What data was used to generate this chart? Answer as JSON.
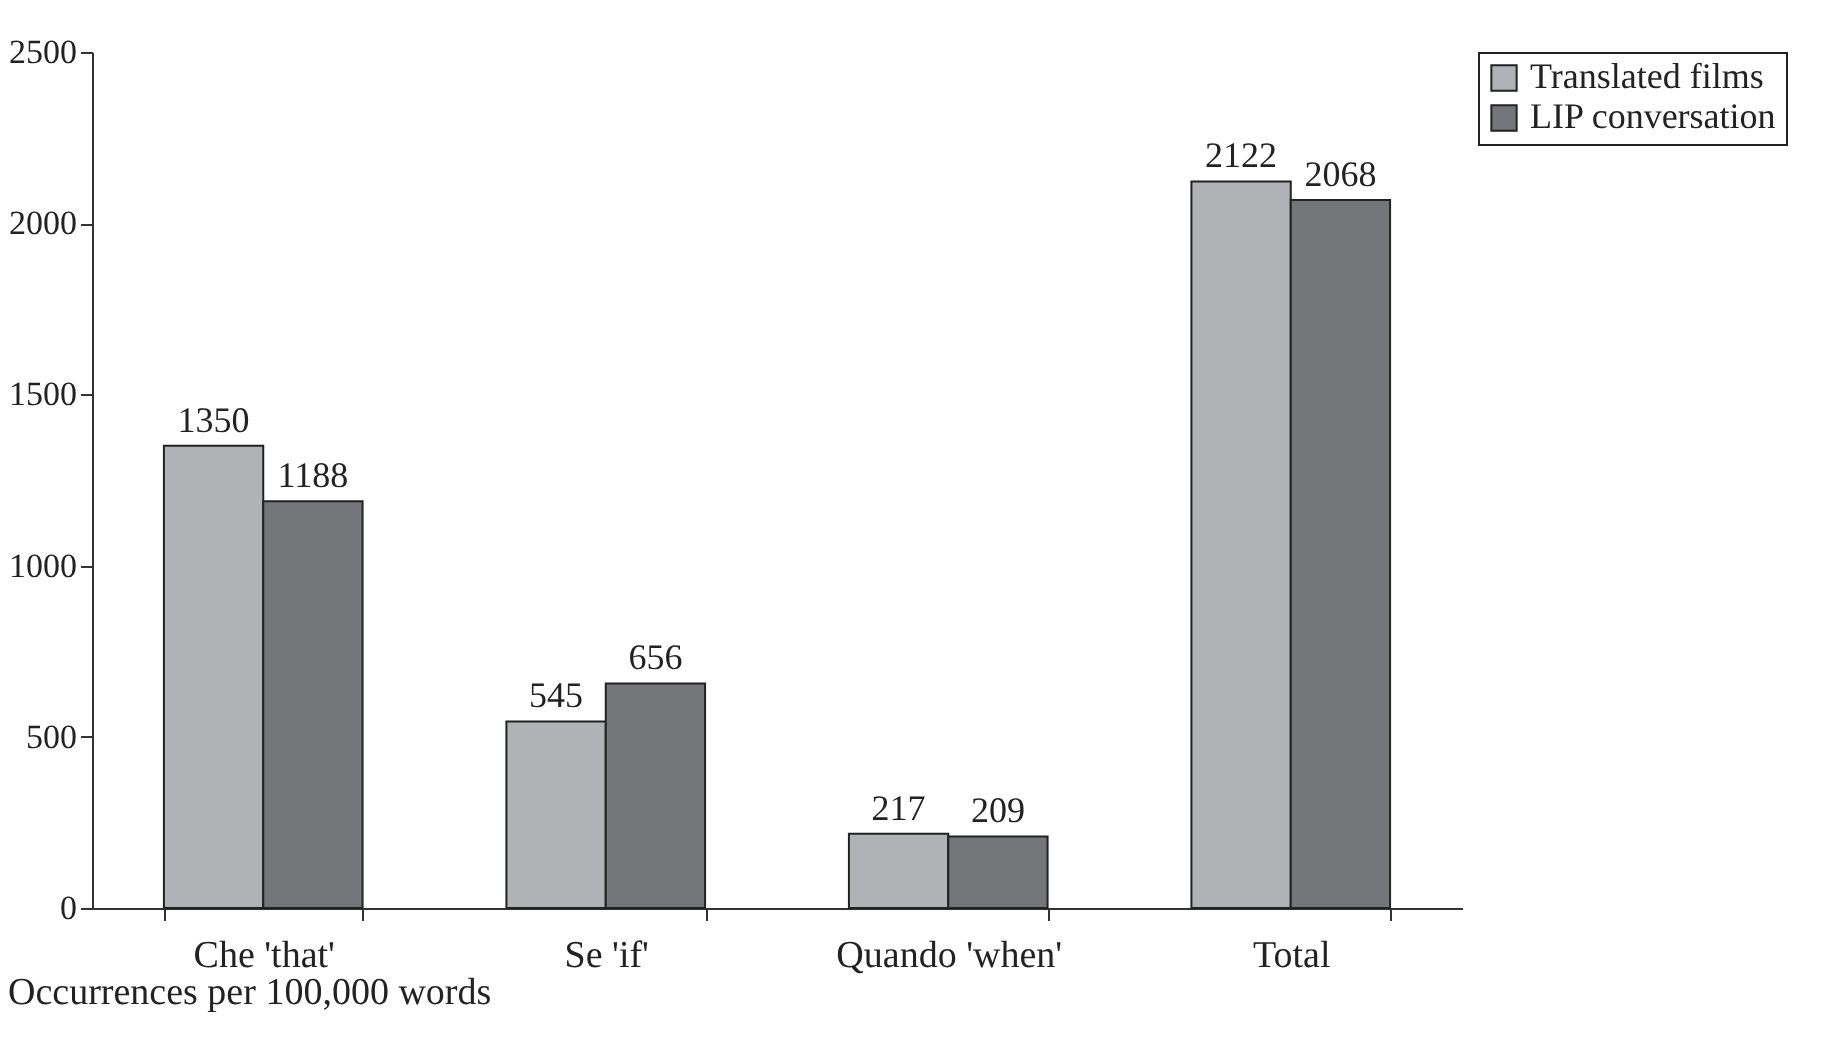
{
  "chart_data": {
    "type": "bar",
    "categories": [
      "Che  'that'",
      "Se 'if'",
      "Quando 'when'",
      "Total"
    ],
    "series": [
      {
        "name": "Translated films",
        "color": "#b1b2b6",
        "values": [
          1350,
          545,
          217,
          2122
        ]
      },
      {
        "name": "LIP conversation",
        "color": "#757679",
        "values": [
          1188,
          656,
          209,
          2068
        ]
      }
    ],
    "ylim": [
      0,
      2500
    ],
    "yticks": [
      0,
      500,
      1000,
      1500,
      2000,
      2500
    ],
    "data_labels": true,
    "legend": "right",
    "grid": false,
    "annotations": [
      "Occurrences per 100,000 words"
    ]
  }
}
